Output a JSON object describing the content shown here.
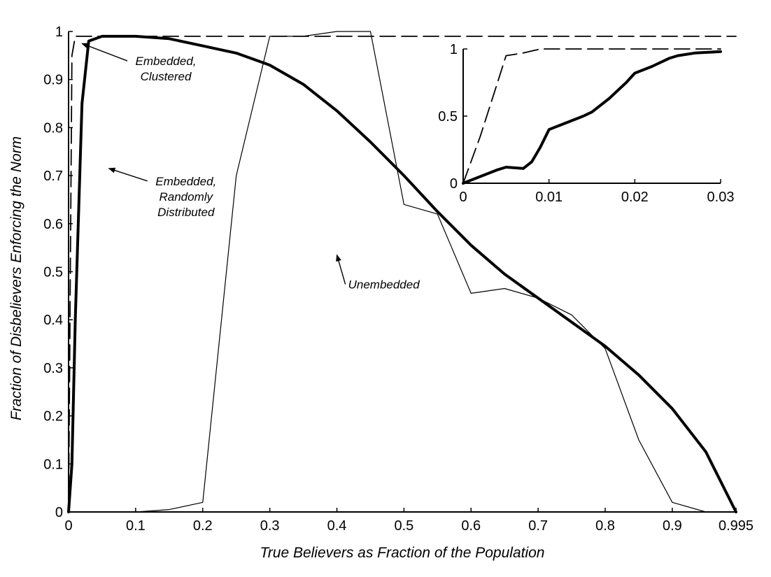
{
  "chart_data": [
    {
      "type": "line",
      "title": "",
      "xlabel": "True Believers as Fraction of the Population",
      "ylabel": "Fraction of Disbelievers Enforcing the Norm",
      "xlim": [
        0,
        0.995
      ],
      "ylim": [
        0,
        1
      ],
      "x_ticks": [
        0,
        0.1,
        0.2,
        0.3,
        0.4,
        0.5,
        0.6,
        0.7,
        0.8,
        0.9,
        0.995
      ],
      "x_tick_labels": [
        "0",
        "0.1",
        "0.2",
        "0.3",
        "0.4",
        "0.5",
        "0.6",
        "0.7",
        "0.8",
        "0.9",
        "0.995"
      ],
      "y_ticks": [
        0,
        0.1,
        0.2,
        0.3,
        0.4,
        0.5,
        0.6,
        0.7,
        0.8,
        0.9,
        1
      ],
      "y_tick_labels": [
        "0",
        "0.1",
        "0.2",
        "0.3",
        "0.4",
        "0.5",
        "0.6",
        "0.7",
        "0.8",
        "0.9",
        "1"
      ],
      "grid": false,
      "series": [
        {
          "style": "dashed",
          "x": [
            0,
            0.005,
            0.01,
            0.02,
            0.03,
            0.05,
            0.1,
            0.2,
            0.4,
            0.6,
            0.8,
            0.995
          ],
          "y": [
            0,
            0.95,
            0.99,
            0.99,
            0.99,
            0.99,
            0.99,
            0.99,
            0.99,
            0.99,
            0.99,
            0.99
          ]
        },
        {
          "style": "thick",
          "x": [
            0,
            0.005,
            0.01,
            0.02,
            0.03,
            0.05,
            0.1,
            0.15,
            0.2,
            0.25,
            0.3,
            0.35,
            0.4,
            0.45,
            0.5,
            0.55,
            0.6,
            0.65,
            0.7,
            0.75,
            0.8,
            0.85,
            0.9,
            0.95,
            0.995
          ],
          "y": [
            0,
            0.1,
            0.4,
            0.85,
            0.98,
            0.99,
            0.99,
            0.985,
            0.97,
            0.955,
            0.93,
            0.89,
            0.835,
            0.77,
            0.7,
            0.625,
            0.555,
            0.495,
            0.445,
            0.395,
            0.345,
            0.285,
            0.215,
            0.125,
            0
          ]
        },
        {
          "style": "thin",
          "x": [
            0,
            0.1,
            0.15,
            0.2,
            0.25,
            0.3,
            0.35,
            0.4,
            0.45,
            0.5,
            0.55,
            0.6,
            0.65,
            0.7,
            0.75,
            0.8,
            0.85,
            0.9,
            0.95,
            0.995
          ],
          "y": [
            0,
            0,
            0.005,
            0.02,
            0.7,
            0.99,
            0.99,
            1.0,
            1.0,
            0.64,
            0.62,
            0.455,
            0.465,
            0.445,
            0.41,
            0.34,
            0.15,
            0.02,
            0,
            0
          ]
        }
      ],
      "annotations": [
        {
          "lines": [
            "Embedded,",
            "Clustered"
          ],
          "x": 0.145,
          "y": 0.93,
          "arrow_to": [
            0.02,
            0.975
          ]
        },
        {
          "lines": [
            "Embedded,",
            "Randomly",
            "Distributed"
          ],
          "x": 0.175,
          "y": 0.68,
          "arrow_to": [
            0.06,
            0.715
          ]
        },
        {
          "lines": [
            "Unembedded"
          ],
          "x": 0.47,
          "y": 0.465,
          "arrow_to": [
            0.4,
            0.535
          ]
        }
      ]
    },
    {
      "type": "line",
      "title": "",
      "xlim": [
        0,
        0.03
      ],
      "ylim": [
        0,
        1
      ],
      "x_ticks": [
        0,
        0.01,
        0.02,
        0.03
      ],
      "x_tick_labels": [
        "0",
        "0.01",
        "0.02",
        "0.03"
      ],
      "y_ticks": [
        0,
        0.5,
        1
      ],
      "y_tick_labels": [
        "0",
        "0.5",
        "1"
      ],
      "series": [
        {
          "style": "dashed",
          "x": [
            0,
            0.002,
            0.004,
            0.005,
            0.007,
            0.009,
            0.012,
            0.02,
            0.03
          ],
          "y": [
            0,
            0.35,
            0.75,
            0.95,
            0.97,
            1.0,
            1.0,
            1.0,
            1.0
          ]
        },
        {
          "style": "thick",
          "x": [
            0,
            0.002,
            0.004,
            0.005,
            0.007,
            0.008,
            0.009,
            0.01,
            0.012,
            0.014,
            0.015,
            0.017,
            0.019,
            0.02,
            0.022,
            0.024,
            0.025,
            0.027,
            0.03
          ],
          "y": [
            0,
            0.05,
            0.1,
            0.12,
            0.11,
            0.16,
            0.27,
            0.4,
            0.45,
            0.5,
            0.53,
            0.63,
            0.75,
            0.82,
            0.87,
            0.93,
            0.95,
            0.97,
            0.98
          ]
        }
      ]
    }
  ]
}
